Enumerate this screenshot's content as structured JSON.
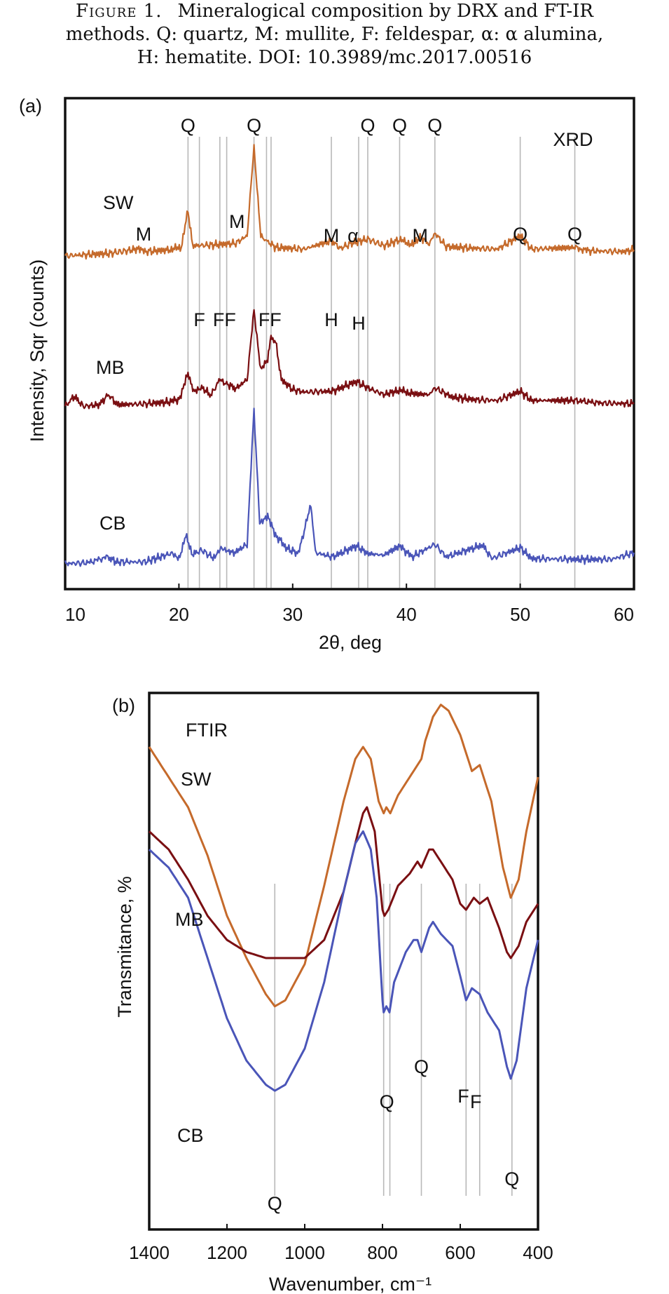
{
  "caption": {
    "figure_label": "Figure 1.",
    "line1": "Mineralogical composition by DRX and FT-IR",
    "line2": "methods. Q: quartz, M: mullite, F: feldespar, α: α alumina,",
    "line3": "H: hematite. DOI: 10.3989/mc.2017.00516"
  },
  "colors": {
    "SW": "#c56a2b",
    "MB": "#7a0f12",
    "CB": "#4a55b8",
    "refline": "#b8b8b8",
    "axis": "#111111"
  },
  "chart_data": [
    {
      "panel_label": "(a)",
      "title": "XRD",
      "type": "line",
      "xlabel": "2θ, deg",
      "ylabel": "Intensity, Sqr (counts)",
      "xlim": [
        10,
        60
      ],
      "xticks": [
        10,
        20,
        30,
        40,
        50,
        60
      ],
      "grid": false,
      "series": [
        {
          "name": "SW",
          "color": "#c56a2b",
          "points": [
            [
              10,
              42
            ],
            [
              14,
              48
            ],
            [
              16.3,
              58
            ],
            [
              17,
              52
            ],
            [
              19,
              56
            ],
            [
              20.2,
              62
            ],
            [
              20.8,
              150
            ],
            [
              21.2,
              66
            ],
            [
              23,
              68
            ],
            [
              25,
              72
            ],
            [
              26,
              90
            ],
            [
              26.6,
              300
            ],
            [
              27.2,
              88
            ],
            [
              28.5,
              62
            ],
            [
              31,
              58
            ],
            [
              33.4,
              78
            ],
            [
              34.2,
              60
            ],
            [
              35.2,
              72
            ],
            [
              36.6,
              82
            ],
            [
              38,
              66
            ],
            [
              39.4,
              80
            ],
            [
              40.6,
              68
            ],
            [
              41.2,
              88
            ],
            [
              42,
              70
            ],
            [
              42.5,
              96
            ],
            [
              43.5,
              64
            ],
            [
              46,
              60
            ],
            [
              48,
              58
            ],
            [
              50,
              90
            ],
            [
              51,
              58
            ],
            [
              54.8,
              62
            ],
            [
              56,
              54
            ],
            [
              59,
              52
            ],
            [
              60,
              56
            ]
          ]
        },
        {
          "name": "MB",
          "color": "#7a0f12",
          "points": [
            [
              10,
              46
            ],
            [
              10.8,
              70
            ],
            [
              11.6,
              46
            ],
            [
              13,
              50
            ],
            [
              13.8,
              74
            ],
            [
              14.6,
              50
            ],
            [
              17,
              52
            ],
            [
              19,
              56
            ],
            [
              20.1,
              64
            ],
            [
              20.8,
              125
            ],
            [
              21.3,
              80
            ],
            [
              22,
              92
            ],
            [
              22.8,
              72
            ],
            [
              23.6,
              110
            ],
            [
              24.2,
              100
            ],
            [
              25,
              88
            ],
            [
              26,
              110
            ],
            [
              26.6,
              275
            ],
            [
              27.2,
              130
            ],
            [
              27.8,
              160
            ],
            [
              28.1,
              210
            ],
            [
              28.5,
              200
            ],
            [
              29,
              110
            ],
            [
              30,
              86
            ],
            [
              31,
              80
            ],
            [
              33.5,
              82
            ],
            [
              35.6,
              105
            ],
            [
              36.6,
              90
            ],
            [
              38,
              74
            ],
            [
              39.4,
              84
            ],
            [
              40.6,
              76
            ],
            [
              42,
              74
            ],
            [
              42.5,
              90
            ],
            [
              44,
              68
            ],
            [
              46,
              62
            ],
            [
              48,
              60
            ],
            [
              50,
              82
            ],
            [
              51,
              60
            ],
            [
              54.8,
              60
            ],
            [
              57,
              54
            ],
            [
              60,
              52
            ]
          ]
        },
        {
          "name": "CB",
          "color": "#4a55b8",
          "points": [
            [
              10,
              24
            ],
            [
              12,
              26
            ],
            [
              13.7,
              40
            ],
            [
              14.5,
              28
            ],
            [
              17,
              28
            ],
            [
              19.3,
              48
            ],
            [
              20,
              36
            ],
            [
              20.6,
              90
            ],
            [
              21.2,
              46
            ],
            [
              22,
              56
            ],
            [
              23,
              38
            ],
            [
              23.7,
              62
            ],
            [
              24.4,
              50
            ],
            [
              25,
              52
            ],
            [
              26,
              70
            ],
            [
              26.6,
              390
            ],
            [
              27.1,
              120
            ],
            [
              27.8,
              140
            ],
            [
              28.4,
              95
            ],
            [
              29.5,
              60
            ],
            [
              30.5,
              48
            ],
            [
              31.6,
              165
            ],
            [
              32,
              50
            ],
            [
              33.5,
              40
            ],
            [
              35.6,
              66
            ],
            [
              36.6,
              48
            ],
            [
              38,
              44
            ],
            [
              39.4,
              66
            ],
            [
              40.5,
              40
            ],
            [
              42.5,
              70
            ],
            [
              43.5,
              40
            ],
            [
              46.7,
              68
            ],
            [
              47.5,
              36
            ],
            [
              50,
              62
            ],
            [
              51,
              36
            ],
            [
              55,
              34
            ],
            [
              58,
              34
            ],
            [
              60,
              50
            ]
          ]
        }
      ],
      "series_labels": [
        "SW",
        "MB",
        "CB"
      ],
      "reference_lines": [
        20.8,
        21.8,
        23.6,
        24.2,
        26.6,
        27.7,
        28.1,
        33.4,
        35.8,
        36.6,
        39.4,
        42.5,
        50.0,
        54.8
      ],
      "peak_labels": [
        {
          "text": "Q",
          "x": 20.8
        },
        {
          "text": "Q",
          "x": 26.6
        },
        {
          "text": "Q",
          "x": 36.6
        },
        {
          "text": "Q",
          "x": 39.4
        },
        {
          "text": "Q",
          "x": 42.5
        },
        {
          "text": "M",
          "x": 16.9
        },
        {
          "text": "M",
          "x": 25.1
        },
        {
          "text": "M",
          "x": 33.4
        },
        {
          "text": "α",
          "x": 35.3
        },
        {
          "text": "M",
          "x": 41.2
        },
        {
          "text": "Q",
          "x": 50.0
        },
        {
          "text": "Q",
          "x": 54.8
        },
        {
          "text": "F",
          "x": 21.8
        },
        {
          "text": "FF",
          "x": 24.0
        },
        {
          "text": "FF",
          "x": 28.0
        },
        {
          "text": "H",
          "x": 33.4
        },
        {
          "text": "H",
          "x": 35.8
        }
      ]
    },
    {
      "panel_label": "(b)",
      "title": "FTIR",
      "type": "line",
      "xlabel": "Wavenumber, cm⁻¹",
      "ylabel": "Transmitance, %",
      "xlim": [
        1400,
        400
      ],
      "xticks": [
        1400,
        1200,
        1000,
        800,
        600,
        400
      ],
      "grid": false,
      "series": [
        {
          "name": "SW",
          "color": "#c56a2b",
          "points": [
            [
              1400,
              80
            ],
            [
              1350,
              75
            ],
            [
              1300,
              70
            ],
            [
              1250,
              62
            ],
            [
              1200,
              52
            ],
            [
              1150,
              45
            ],
            [
              1100,
              39
            ],
            [
              1077,
              37
            ],
            [
              1050,
              38
            ],
            [
              1000,
              44
            ],
            [
              950,
              57
            ],
            [
              900,
              71
            ],
            [
              870,
              78
            ],
            [
              850,
              80
            ],
            [
              830,
              78
            ],
            [
              810,
              71
            ],
            [
              797,
              69
            ],
            [
              790,
              70
            ],
            [
              780,
              69
            ],
            [
              760,
              72
            ],
            [
              720,
              76
            ],
            [
              700,
              78
            ],
            [
              690,
              81
            ],
            [
              670,
              85
            ],
            [
              650,
              87
            ],
            [
              630,
              86
            ],
            [
              600,
              82
            ],
            [
              585,
              79
            ],
            [
              570,
              76
            ],
            [
              550,
              77
            ],
            [
              520,
              71
            ],
            [
              490,
              60
            ],
            [
              470,
              55
            ],
            [
              450,
              58
            ],
            [
              430,
              66
            ],
            [
              400,
              75
            ]
          ]
        },
        {
          "name": "MB",
          "color": "#7a0f12",
          "points": [
            [
              1400,
              66
            ],
            [
              1350,
              63
            ],
            [
              1300,
              58
            ],
            [
              1250,
              52
            ],
            [
              1200,
              48
            ],
            [
              1150,
              46
            ],
            [
              1100,
              45
            ],
            [
              1050,
              45
            ],
            [
              1000,
              45
            ],
            [
              950,
              48
            ],
            [
              900,
              56
            ],
            [
              870,
              64
            ],
            [
              850,
              69
            ],
            [
              840,
              70
            ],
            [
              820,
              66
            ],
            [
              800,
              53
            ],
            [
              795,
              52
            ],
            [
              785,
              53
            ],
            [
              760,
              57
            ],
            [
              730,
              59
            ],
            [
              710,
              61
            ],
            [
              700,
              60
            ],
            [
              680,
              63
            ],
            [
              670,
              63
            ],
            [
              650,
              61
            ],
            [
              620,
              58
            ],
            [
              600,
              54
            ],
            [
              585,
              53
            ],
            [
              565,
              55
            ],
            [
              550,
              54
            ],
            [
              530,
              55
            ],
            [
              500,
              50
            ],
            [
              480,
              46
            ],
            [
              470,
              45
            ],
            [
              450,
              47
            ],
            [
              430,
              51
            ],
            [
              400,
              54
            ]
          ]
        },
        {
          "name": "CB",
          "color": "#4a55b8",
          "points": [
            [
              1400,
              63
            ],
            [
              1350,
              60
            ],
            [
              1300,
              55
            ],
            [
              1250,
              45
            ],
            [
              1200,
              35
            ],
            [
              1150,
              28
            ],
            [
              1100,
              24
            ],
            [
              1077,
              23
            ],
            [
              1050,
              24
            ],
            [
              1000,
              30
            ],
            [
              950,
              41
            ],
            [
              900,
              56
            ],
            [
              870,
              64
            ],
            [
              850,
              66
            ],
            [
              830,
              63
            ],
            [
              815,
              55
            ],
            [
              800,
              38
            ],
            [
              797,
              36
            ],
            [
              790,
              37
            ],
            [
              782,
              36
            ],
            [
              770,
              41
            ],
            [
              740,
              46
            ],
            [
              720,
              48
            ],
            [
              710,
              48
            ],
            [
              700,
              46
            ],
            [
              680,
              50
            ],
            [
              670,
              51
            ],
            [
              650,
              49
            ],
            [
              620,
              47
            ],
            [
              600,
              42
            ],
            [
              585,
              38
            ],
            [
              570,
              40
            ],
            [
              550,
              39
            ],
            [
              530,
              36
            ],
            [
              500,
              33
            ],
            [
              480,
              27
            ],
            [
              470,
              25
            ],
            [
              455,
              28
            ],
            [
              430,
              40
            ],
            [
              400,
              48
            ]
          ]
        }
      ],
      "series_labels": [
        "SW",
        "MB",
        "CB"
      ],
      "reference_lines": [
        1077,
        797,
        781,
        700,
        585,
        550,
        467
      ],
      "peak_labels": [
        {
          "text": "Q",
          "x": 1077
        },
        {
          "text": "Q",
          "x": 789
        },
        {
          "text": "Q",
          "x": 700
        },
        {
          "text": "F",
          "x": 592
        },
        {
          "text": "F",
          "x": 560
        },
        {
          "text": "Q",
          "x": 467
        }
      ]
    }
  ]
}
